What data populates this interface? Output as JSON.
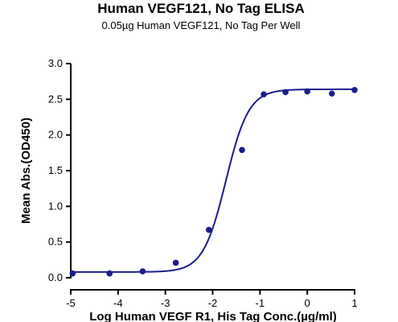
{
  "chart_data": {
    "type": "scatter",
    "title": "Human VEGF121, No Tag ELISA",
    "subtitle": "0.05µg Human VEGF121, No Tag Per Well",
    "xlabel": "Log Human VEGF R1, His Tag Conc.(µg/ml)",
    "ylabel": "Mean Abs.(OD450)",
    "xlim": [
      -5,
      1
    ],
    "ylim": [
      0,
      3.0
    ],
    "xticks": [
      -5,
      -4,
      -3,
      -2,
      -1,
      0,
      1
    ],
    "xtick_labels": [
      "-5",
      "-4",
      "-3",
      "-2",
      "-1",
      "0",
      "1"
    ],
    "yticks": [
      0,
      0.5,
      1.0,
      1.5,
      2.0,
      2.5,
      3.0
    ],
    "ytick_labels": [
      "0.0",
      "0.5",
      "1.0",
      "1.5",
      "2.0",
      "2.5",
      "3.0"
    ],
    "grid": false,
    "legend": "none",
    "series": [
      {
        "x": [
          -4.96,
          -4.18,
          -3.48,
          -2.78,
          -2.08,
          -1.38,
          -0.92,
          -0.46,
          0.0,
          0.52,
          1.0
        ],
        "y": [
          0.06,
          0.06,
          0.09,
          0.21,
          0.67,
          1.79,
          2.57,
          2.6,
          2.61,
          2.58,
          2.63
        ]
      }
    ],
    "fit_curve": {
      "model": "4PL",
      "bottom": 0.08,
      "top": 2.64,
      "log_ec50": -1.72,
      "hill_slope": 1.8
    },
    "colors": {
      "series": "#1c1c8f",
      "axis": "#000000"
    }
  }
}
